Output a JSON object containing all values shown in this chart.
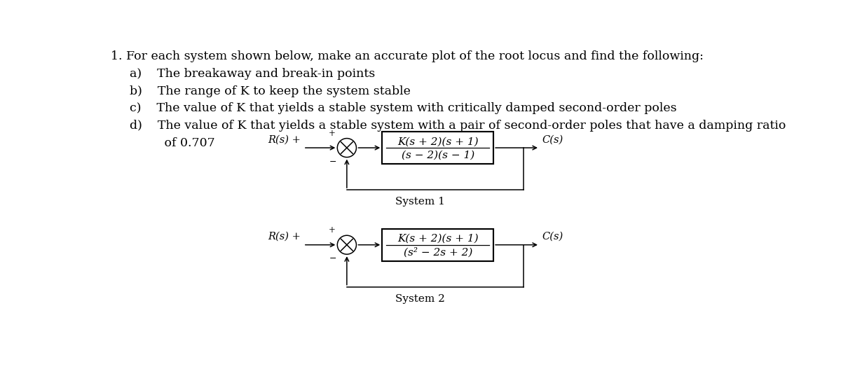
{
  "background_color": "#ffffff",
  "text_color": "#000000",
  "title_line": "1. For each system shown below, make an accurate plot of the root locus and find the following:",
  "items_a": "a)    The breakaway and break-in points",
  "items_b": "b)    The range of K to keep the system stable",
  "items_c": "c)    The value of K that yields a stable system with critically damped second-order poles",
  "items_d": "d)    The value of K that yields a stable system with a pair of second-order poles that have a damping ratio",
  "items_d2": "         of 0.707",
  "system1": {
    "label": "System 1",
    "Rs_label": "R(s) +",
    "Cs_label": "C(s)",
    "box_num": "K(s + 2)(s + 1)",
    "box_den": "(s − 2)(s − 1)"
  },
  "system2": {
    "label": "System 2",
    "Rs_label": "R(s) +",
    "Cs_label": "C(s)",
    "box_num": "K(s + 2)(s + 1)",
    "box_den": "(s² − 2s + 2)"
  },
  "font_size_title": 12.5,
  "font_size_items": 12.5,
  "font_size_block": 11,
  "font_size_labels": 10.5
}
